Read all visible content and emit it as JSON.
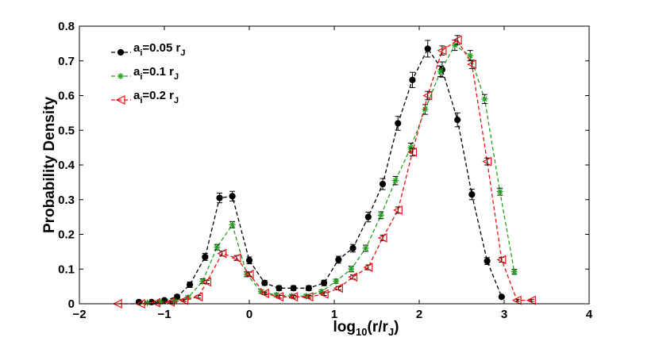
{
  "chart_data": {
    "type": "line",
    "xlabel": {
      "base": "log",
      "sub1": "10",
      "mid": "(r/r",
      "sub2": "J",
      "end": ")"
    },
    "ylabel": "Probability Density",
    "xlim": [
      -2,
      4
    ],
    "ylim": [
      0,
      0.8
    ],
    "xticks": [
      -2,
      -1,
      0,
      1,
      2,
      3,
      4
    ],
    "yticks": [
      0,
      0.1,
      0.2,
      0.3,
      0.4,
      0.5,
      0.6,
      0.7,
      0.8
    ],
    "xtick_labels": [
      "−2",
      "−1",
      "0",
      "1",
      "2",
      "3",
      "4"
    ],
    "ytick_labels": [
      "0",
      "0.1",
      "0.2",
      "0.3",
      "0.4",
      "0.5",
      "0.6",
      "0.7",
      "0.8"
    ],
    "legend_position": "top-left",
    "series": [
      {
        "name": "a_i=0.05 r_J",
        "legend": {
          "a": "a",
          "i": "i",
          "rest": "=0.05 r",
          "J": "J"
        },
        "color": "#000000",
        "marker": "dot",
        "x": [
          -1.3,
          -1.15,
          -1.0,
          -0.85,
          -0.7,
          -0.52,
          -0.35,
          -0.2,
          0.0,
          0.18,
          0.35,
          0.52,
          0.7,
          0.88,
          1.05,
          1.22,
          1.4,
          1.57,
          1.75,
          1.92,
          2.1,
          2.27,
          2.45,
          2.62,
          2.8,
          2.97
        ],
        "y": [
          0.005,
          0.005,
          0.01,
          0.02,
          0.055,
          0.135,
          0.305,
          0.31,
          0.125,
          0.06,
          0.045,
          0.045,
          0.045,
          0.06,
          0.127,
          0.16,
          0.25,
          0.345,
          0.52,
          0.645,
          0.735,
          0.675,
          0.53,
          0.315,
          0.123,
          0.02
        ],
        "err": [
          0.004,
          0.004,
          0.004,
          0.006,
          0.008,
          0.01,
          0.014,
          0.014,
          0.01,
          0.007,
          0.007,
          0.007,
          0.007,
          0.008,
          0.01,
          0.011,
          0.014,
          0.016,
          0.02,
          0.022,
          0.024,
          0.022,
          0.02,
          0.015,
          0.01,
          0.004
        ]
      },
      {
        "name": "a_i=0.1 r_J",
        "legend": {
          "a": "a",
          "i": "i",
          "rest": "=0.1 r",
          "J": "J"
        },
        "color": "#22a020",
        "marker": "star",
        "x": [
          -1.2,
          -1.05,
          -0.88,
          -0.72,
          -0.55,
          -0.38,
          -0.2,
          -0.03,
          0.14,
          0.32,
          0.5,
          0.67,
          0.85,
          1.02,
          1.2,
          1.37,
          1.55,
          1.72,
          1.9,
          2.07,
          2.25,
          2.42,
          2.6,
          2.77,
          2.95,
          3.12
        ],
        "y": [
          0.003,
          0.005,
          0.008,
          0.018,
          0.065,
          0.163,
          0.228,
          0.085,
          0.035,
          0.025,
          0.022,
          0.022,
          0.035,
          0.065,
          0.1,
          0.16,
          0.255,
          0.355,
          0.45,
          0.56,
          0.67,
          0.745,
          0.715,
          0.59,
          0.323,
          0.092
        ],
        "err": [
          0.002,
          0.003,
          0.004,
          0.005,
          0.007,
          0.008,
          0.009,
          0.007,
          0.005,
          0.005,
          0.005,
          0.005,
          0.005,
          0.006,
          0.008,
          0.009,
          0.01,
          0.012,
          0.013,
          0.014,
          0.015,
          0.015,
          0.015,
          0.013,
          0.01,
          0.007
        ]
      },
      {
        "name": "a_i=0.2 r_J",
        "legend": {
          "a": "a",
          "i": "i",
          "rest": "=0.2 r",
          "J": "J"
        },
        "color": "#ee1111",
        "marker": "triangle",
        "x": [
          -1.55,
          -1.28,
          -1.1,
          -0.93,
          -0.77,
          -0.6,
          -0.5,
          -0.32,
          -0.15,
          0.0,
          0.18,
          0.35,
          0.52,
          0.7,
          0.88,
          1.05,
          1.22,
          1.4,
          1.57,
          1.75,
          1.92,
          2.1,
          2.27,
          2.45,
          2.62,
          2.8,
          2.97,
          3.15,
          3.32
        ],
        "y": [
          0.0,
          0.0,
          0.003,
          0.005,
          0.01,
          0.02,
          0.063,
          0.145,
          0.132,
          0.085,
          0.03,
          0.02,
          0.02,
          0.02,
          0.028,
          0.045,
          0.077,
          0.105,
          0.19,
          0.27,
          0.437,
          0.6,
          0.73,
          0.76,
          0.69,
          0.41,
          0.127,
          0.01,
          0.01
        ],
        "err": [
          0.0,
          0.0,
          0.002,
          0.003,
          0.003,
          0.004,
          0.005,
          0.007,
          0.007,
          0.006,
          0.004,
          0.004,
          0.004,
          0.004,
          0.004,
          0.005,
          0.006,
          0.007,
          0.008,
          0.009,
          0.011,
          0.012,
          0.013,
          0.013,
          0.012,
          0.01,
          0.007,
          0.003,
          0.003
        ]
      }
    ]
  }
}
